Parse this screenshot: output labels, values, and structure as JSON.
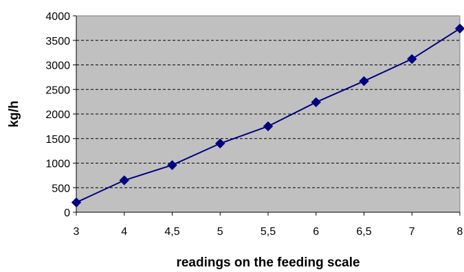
{
  "chart_data": {
    "type": "line",
    "xlabel": "readings on the feeding scale",
    "ylabel": "kg/h",
    "categories": [
      "3",
      "4",
      "4,5",
      "5",
      "5,5",
      "6",
      "6,5",
      "7",
      "8"
    ],
    "series": [
      {
        "values": [
          200,
          650,
          960,
          1400,
          1750,
          2240,
          2670,
          3120,
          3740
        ]
      }
    ],
    "ylim": [
      0,
      4000
    ],
    "yticks": [
      0,
      500,
      1000,
      1500,
      2000,
      2500,
      3000,
      3500,
      4000
    ],
    "grid": "horizontal dashed",
    "legend": "none",
    "colors": {
      "plot_background": "#c0c0c0",
      "line": "#000080",
      "marker": "#000080"
    }
  }
}
